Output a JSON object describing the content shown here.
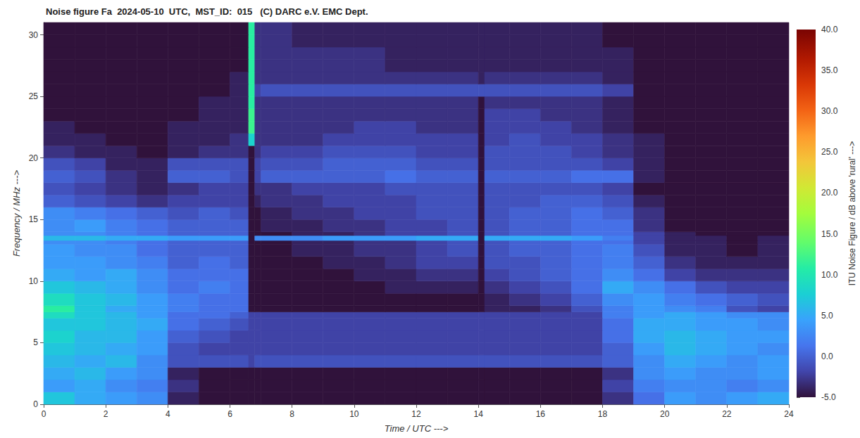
{
  "chart_data": {
    "type": "heatmap",
    "title": "Noise figure Fa  2024-05-10  UTC,  MST_ID:  015   (C) DARC e.V. EMC Dept.",
    "x_label": "Time / UTC --->",
    "y_label": "Frequency / MHz --->",
    "grid": false,
    "xlim": [
      0,
      24
    ],
    "xticks": [
      0,
      2,
      4,
      6,
      8,
      10,
      12,
      14,
      16,
      18,
      20,
      22,
      24
    ],
    "ylim": [
      0,
      31
    ],
    "yticks": [
      0,
      5,
      10,
      15,
      20,
      25,
      30
    ],
    "x_edges": [
      0,
      1,
      2,
      3,
      4,
      5,
      6,
      6.6,
      6.8,
      7,
      8,
      9,
      10,
      11,
      12,
      13,
      14,
      14.2,
      15,
      16,
      17,
      18,
      19,
      20,
      21,
      22,
      23,
      24
    ],
    "y_edges": [
      0,
      1,
      2,
      3,
      4,
      5,
      6,
      7,
      7.5,
      8,
      9,
      10,
      11,
      12,
      13,
      13.3,
      13.7,
      14,
      15,
      16,
      17,
      18,
      19,
      20,
      21,
      22,
      23,
      24,
      25,
      26,
      27,
      28,
      29,
      30,
      31
    ],
    "z": [
      [
        7,
        5,
        4,
        3,
        -4,
        -5,
        -5,
        -5,
        -5,
        -5,
        -5,
        -5,
        -5,
        -5,
        -5,
        -5,
        -5,
        -5,
        -5,
        -5,
        -5,
        -3,
        1,
        4,
        3,
        4,
        5
      ],
      [
        4,
        5,
        3,
        2,
        -3,
        -5,
        -5,
        -5,
        -5,
        -5,
        -5,
        -5,
        -5,
        -5,
        -5,
        -5,
        -5,
        -5,
        -5,
        -5,
        -5,
        -2,
        2,
        3,
        3,
        2,
        3
      ],
      [
        5,
        6,
        4,
        3,
        -4,
        -5,
        -5,
        -5,
        -5,
        -5,
        -5,
        -5,
        -5,
        -5,
        -5,
        -5,
        -5,
        -5,
        -5,
        -5,
        -5,
        -3,
        3,
        4,
        3,
        3,
        4
      ],
      [
        6,
        5,
        6,
        3,
        -1,
        -1,
        -1,
        -2,
        -1,
        -1,
        -1,
        -1,
        -1,
        -1,
        -1,
        -1,
        -1,
        -1,
        -1,
        -1,
        -1,
        0,
        3,
        5,
        4,
        3,
        4
      ],
      [
        7,
        6,
        5,
        4,
        -1,
        -2,
        -2,
        -2,
        -2,
        -2,
        -2,
        -2,
        -2,
        -2,
        -2,
        -2,
        -2,
        -2,
        -2,
        -2,
        -2,
        0,
        4,
        6,
        5,
        4,
        3
      ],
      [
        8,
        6,
        6,
        4,
        0,
        -1,
        -2,
        -2,
        -2,
        -2,
        -2,
        -2,
        -2,
        -2,
        -2,
        -2,
        -2,
        -2,
        -2,
        -2,
        -2,
        1,
        5,
        6,
        5,
        4,
        4
      ],
      [
        7,
        7,
        6,
        5,
        1,
        0,
        -1,
        -2,
        -2,
        -2,
        -2,
        -2,
        -2,
        -2,
        -2,
        -2,
        -2,
        -2,
        -2,
        -2,
        -2,
        1,
        5,
        5,
        4,
        4,
        3
      ],
      [
        9,
        7,
        6,
        4,
        1,
        1,
        0,
        -2,
        -2,
        -2,
        -2,
        -2,
        -2,
        -2,
        -2,
        -2,
        -2,
        -2,
        -2,
        -2,
        -2,
        2,
        4,
        5,
        4,
        3,
        3
      ],
      [
        11,
        7,
        5,
        4,
        2,
        1,
        1,
        -5,
        -5,
        -5,
        -5,
        -5,
        -5,
        -5,
        -5,
        -5,
        -5,
        -4,
        -4,
        -3,
        -1,
        2,
        4,
        3,
        2,
        -1,
        -2
      ],
      [
        9,
        7,
        6,
        4,
        2,
        1,
        1,
        -5,
        -5,
        -5,
        -5,
        -5,
        -5,
        -5,
        -5,
        -5,
        -5,
        -4,
        -3,
        -2,
        0,
        3,
        4,
        2,
        1,
        0,
        -1
      ],
      [
        7,
        6,
        5,
        3,
        1,
        2,
        1,
        -5,
        -5,
        -5,
        -5,
        -5,
        -5,
        -4,
        -4,
        -4,
        -5,
        -3,
        -2,
        -1,
        1,
        5,
        3,
        1,
        -1,
        -2,
        -2
      ],
      [
        5,
        4,
        5,
        3,
        1,
        1,
        1,
        -5,
        -5,
        -5,
        -5,
        -5,
        -4,
        -4,
        -3,
        -3,
        -5,
        -2,
        -1,
        0,
        1,
        3,
        1,
        -2,
        -3,
        -3,
        -3
      ],
      [
        4,
        4,
        3,
        2,
        0,
        1,
        0,
        -5,
        -5,
        -5,
        -5,
        -4,
        -4,
        -3,
        -2,
        -2,
        -5,
        -1,
        -1,
        0,
        1,
        2,
        0,
        -3,
        -4,
        -4,
        -4
      ],
      [
        4,
        3,
        3,
        1,
        0,
        0,
        0,
        -5,
        -5,
        -5,
        -4,
        -4,
        -3,
        -3,
        -2,
        -1,
        -5,
        -1,
        0,
        0,
        1,
        2,
        -1,
        -4,
        -4,
        -5,
        -4
      ],
      [
        3,
        3,
        2,
        1,
        0,
        0,
        0,
        -5,
        -5,
        -5,
        -4,
        -4,
        -3,
        -3,
        -2,
        -1,
        -5,
        -1,
        0,
        0,
        1,
        1,
        -2,
        -4,
        -4,
        -5,
        -4
      ],
      [
        6,
        6,
        5,
        5,
        4,
        4,
        4,
        -5,
        3,
        3,
        3,
        4,
        4,
        4,
        5,
        5,
        -5,
        5,
        5,
        5,
        4,
        2,
        -2,
        -4,
        -4,
        -5,
        -4
      ],
      [
        3,
        3,
        2,
        1,
        0,
        0,
        0,
        -5,
        -5,
        -5,
        -4,
        -4,
        -3,
        -2,
        -2,
        -1,
        -5,
        -1,
        0,
        0,
        1,
        1,
        -2,
        -4,
        -5,
        -5,
        -5
      ],
      [
        3,
        4,
        2,
        1,
        0,
        0,
        0,
        -5,
        -5,
        -4,
        -4,
        -3,
        -3,
        -2,
        -2,
        -1,
        -5,
        -1,
        0,
        0,
        1,
        1,
        -3,
        -5,
        -5,
        -5,
        -5
      ],
      [
        3,
        2,
        1,
        0,
        -1,
        0,
        -1,
        -5,
        -5,
        -4,
        -3,
        -3,
        -2,
        -2,
        -1,
        -1,
        -5,
        -1,
        0,
        0,
        1,
        0,
        -3,
        -5,
        -5,
        -5,
        -5
      ],
      [
        0,
        -1,
        -2,
        -3,
        -2,
        -2,
        -2,
        -5,
        -4,
        -3,
        -3,
        -2,
        -2,
        -2,
        -1,
        -1,
        -5,
        -1,
        -1,
        0,
        0,
        -1,
        -4,
        -5,
        -5,
        -5,
        -5
      ],
      [
        -1,
        -2,
        -3,
        -4,
        -3,
        -2,
        -2,
        -5,
        -3,
        -3,
        -2,
        -2,
        -2,
        -1,
        -1,
        -1,
        -5,
        -1,
        -1,
        -1,
        -1,
        -2,
        -5,
        -5,
        -5,
        -5,
        -5
      ],
      [
        0,
        -1,
        -3,
        -4,
        0,
        0,
        -1,
        -5,
        -2,
        0,
        0,
        0,
        0,
        1,
        0,
        0,
        -5,
        0,
        0,
        0,
        1,
        1,
        -4,
        -5,
        -5,
        -5,
        -5
      ],
      [
        -1,
        -2,
        -4,
        -4,
        -1,
        -1,
        -1,
        -5,
        -2,
        -1,
        -1,
        0,
        0,
        0,
        -1,
        -1,
        -5,
        -1,
        -1,
        -1,
        -1,
        -2,
        -4,
        -5,
        -5,
        -5,
        -5
      ],
      [
        -3,
        -4,
        -4,
        -5,
        -4,
        -3,
        -3,
        -5,
        -3,
        -2,
        -2,
        -1,
        -1,
        -1,
        -2,
        -2,
        -5,
        -1,
        -1,
        -1,
        -2,
        -3,
        -4,
        -5,
        -5,
        -5,
        -5
      ],
      [
        -4,
        -4,
        -5,
        -5,
        -4,
        -4,
        -3,
        8,
        -3,
        -3,
        -3,
        -2,
        -2,
        -2,
        -2,
        -2,
        -5,
        -2,
        -1,
        -2,
        -2,
        -3,
        -4,
        -5,
        -5,
        -5,
        -5
      ],
      [
        -4,
        -5,
        -5,
        -5,
        -4,
        -4,
        -4,
        12,
        -3,
        -3,
        -3,
        -3,
        -2,
        -2,
        -3,
        -3,
        -5,
        -2,
        -2,
        -2,
        -3,
        -4,
        -5,
        -5,
        -5,
        -5,
        -5
      ],
      [
        -5,
        -5,
        -5,
        -5,
        -5,
        -4,
        -4,
        12,
        -3,
        -3,
        -3,
        -3,
        -3,
        -3,
        -3,
        -3,
        -5,
        -2,
        -2,
        -3,
        -3,
        -4,
        -5,
        -5,
        -5,
        -5,
        -5
      ],
      [
        -5,
        -5,
        -5,
        -5,
        -5,
        -4,
        -4,
        11,
        -3,
        -3,
        -3,
        -3,
        -3,
        -3,
        -3,
        -3,
        -5,
        -3,
        -3,
        -3,
        -3,
        -4,
        -5,
        -5,
        -5,
        -5,
        -5
      ],
      [
        -5,
        -5,
        -5,
        -5,
        -5,
        -5,
        -4,
        11,
        -2,
        -1,
        -1,
        -1,
        -1,
        -1,
        -1,
        -1,
        -1,
        -1,
        -1,
        -1,
        -1,
        -2,
        -5,
        -5,
        -5,
        -5,
        -5
      ],
      [
        -5,
        -5,
        -5,
        -5,
        -5,
        -5,
        -4,
        11,
        -3,
        -3,
        -3,
        -3,
        -3,
        -3,
        -3,
        -3,
        -4,
        -3,
        -3,
        -3,
        -3,
        -4,
        -5,
        -5,
        -5,
        -5,
        -5
      ],
      [
        -5,
        -5,
        -5,
        -5,
        -5,
        -5,
        -5,
        11,
        -3,
        -3,
        -3,
        -3,
        -3,
        -4,
        -4,
        -4,
        -4,
        -4,
        -4,
        -4,
        -4,
        -4,
        -5,
        -5,
        -5,
        -5,
        -5
      ],
      [
        -5,
        -5,
        -5,
        -5,
        -5,
        -5,
        -5,
        11,
        -3,
        -3,
        -3,
        -3,
        -3,
        -4,
        -4,
        -4,
        -4,
        -4,
        -4,
        -4,
        -4,
        -4,
        -5,
        -5,
        -5,
        -5,
        -5
      ],
      [
        -5,
        -5,
        -5,
        -5,
        -5,
        -5,
        -5,
        11,
        -3,
        -3,
        -4,
        -4,
        -4,
        -4,
        -4,
        -4,
        -4,
        -4,
        -4,
        -4,
        -4,
        -5,
        -5,
        -5,
        -5,
        -5,
        -5
      ],
      [
        -5,
        -5,
        -5,
        -5,
        -5,
        -5,
        -5,
        11,
        -3,
        -3,
        -4,
        -4,
        -4,
        -4,
        -4,
        -4,
        -4,
        -4,
        -4,
        -4,
        -4,
        -5,
        -5,
        -5,
        -5,
        -5,
        -5
      ]
    ],
    "colorbar": {
      "label": "ITU Noise Figure / dB above 'rural' --->",
      "range": [
        -5,
        40
      ],
      "ticks": [
        {
          "value": -5,
          "label": "-5.0"
        },
        {
          "value": 0,
          "label": "0.0"
        },
        {
          "value": 5,
          "label": "5.0"
        },
        {
          "value": 10,
          "label": "10.0"
        },
        {
          "value": 15,
          "label": "15.0"
        },
        {
          "value": 20,
          "label": "20.0"
        },
        {
          "value": 25,
          "label": "25.0"
        },
        {
          "value": 30,
          "label": "30.0"
        },
        {
          "value": 35,
          "label": "35.0"
        },
        {
          "value": 40,
          "label": "40.0"
        }
      ]
    }
  }
}
